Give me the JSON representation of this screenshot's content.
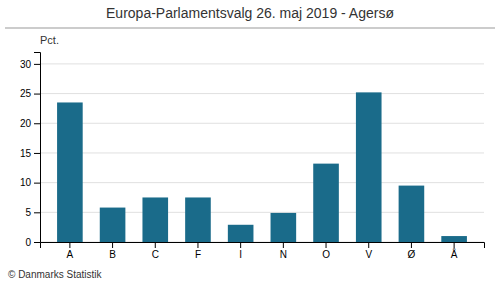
{
  "chart_data": {
    "type": "bar",
    "title": "Europa-Parlamentsvalg 26. maj 2019 - Agersø",
    "categories": [
      "A",
      "B",
      "C",
      "F",
      "I",
      "N",
      "O",
      "V",
      "Ø",
      "Å"
    ],
    "values": [
      23.5,
      5.8,
      7.5,
      7.5,
      2.9,
      4.9,
      13.2,
      25.2,
      9.5,
      1.0
    ],
    "color": "#1a6b8a",
    "ylabel": "Pct.",
    "footer": "© Danmarks Statistik",
    "ylim": [
      0,
      32
    ],
    "yticks": [
      0,
      5,
      10,
      15,
      20,
      25,
      30
    ],
    "grid": true
  }
}
